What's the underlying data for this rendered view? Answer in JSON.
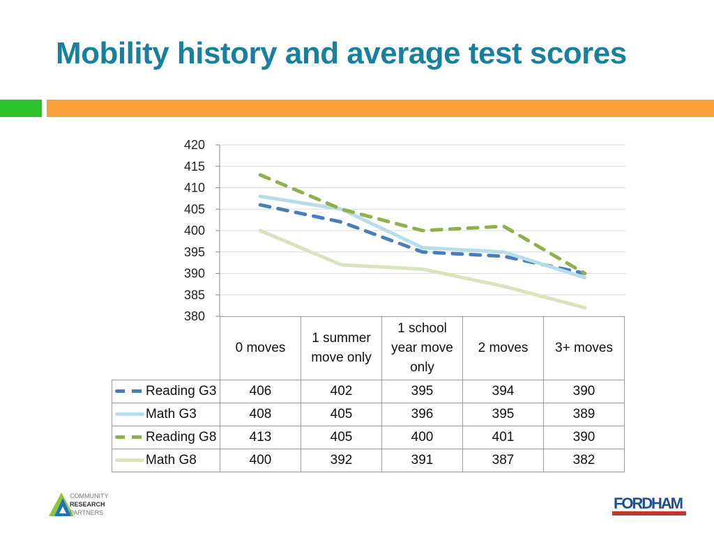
{
  "title": "Mobility history and average test scores",
  "colors": {
    "title": "#17809f",
    "green_bar": "#2bc22b",
    "orange_bar": "#f9a03a"
  },
  "chart_data": {
    "type": "line",
    "categories": [
      "0 moves",
      "1 summer move only",
      "1 school year move only",
      "2 moves",
      "3+ moves"
    ],
    "category_lines": [
      [
        "0 moves"
      ],
      [
        "1 summer",
        "move only"
      ],
      [
        "1 school",
        "year move",
        "only"
      ],
      [
        "2 moves"
      ],
      [
        "3+ moves"
      ]
    ],
    "ylim": [
      380,
      420
    ],
    "yticks": [
      380,
      385,
      390,
      395,
      400,
      405,
      410,
      415,
      420
    ],
    "grid": true,
    "legend": "data-table",
    "series": [
      {
        "name": "Reading G3",
        "values": [
          406,
          402,
          395,
          394,
          390
        ],
        "color": "#4a7ebb",
        "dash": true
      },
      {
        "name": "Math G3",
        "values": [
          408,
          405,
          396,
          395,
          389
        ],
        "color": "#b7dde8",
        "dash": false
      },
      {
        "name": "Reading G8",
        "values": [
          413,
          405,
          400,
          401,
          390
        ],
        "color": "#8fb04a",
        "dash": true
      },
      {
        "name": "Math G8",
        "values": [
          400,
          392,
          391,
          387,
          382
        ],
        "color": "#d7e4bd",
        "dash": false
      }
    ]
  },
  "logos": {
    "left": "COMMUNITY RESEARCH PARTNERS",
    "right": "THOMAS B. FORDHAM INSTITUTE"
  }
}
